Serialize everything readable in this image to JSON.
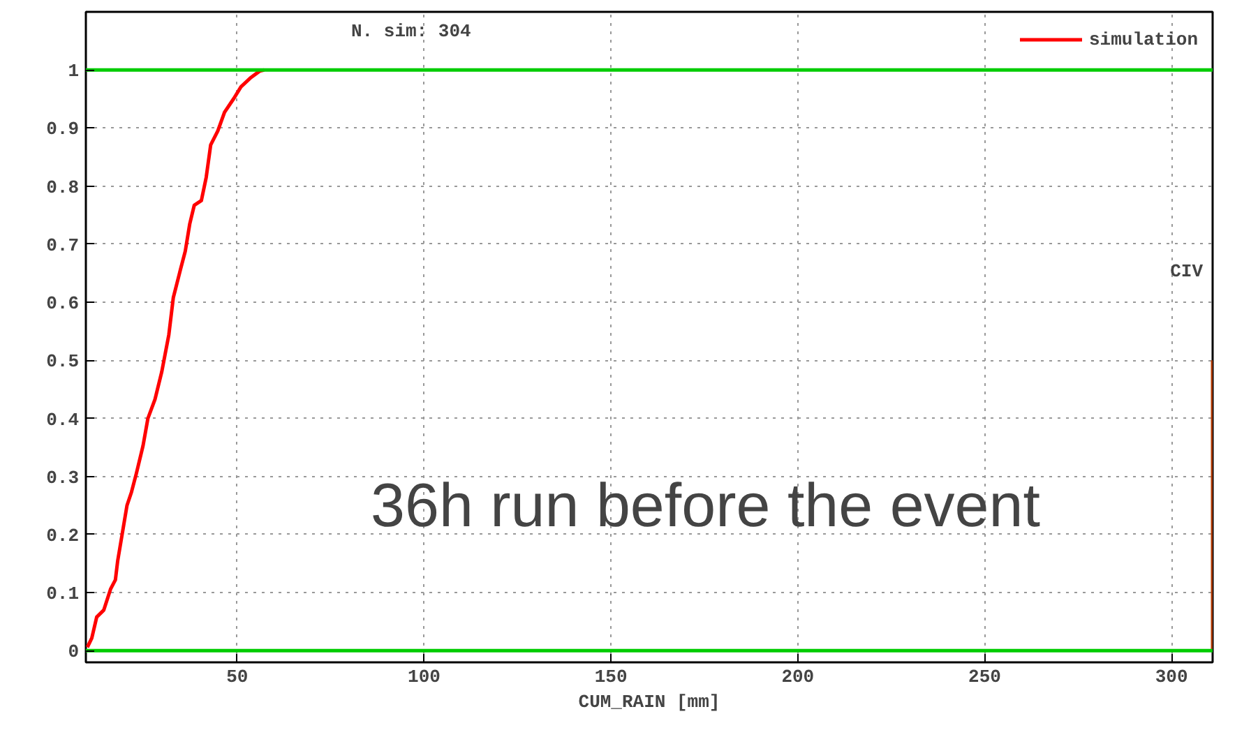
{
  "chart_data": {
    "type": "line",
    "title": "N. sim: 304",
    "xlabel": "CUM_RAIN [mm]",
    "xlim": [
      9.5,
      311
    ],
    "ylim": [
      -0.02,
      1.1
    ],
    "xticks": [
      50,
      100,
      150,
      200,
      250,
      300
    ],
    "yticks": [
      0,
      0.1,
      0.2,
      0.3,
      0.4,
      0.5,
      0.6,
      0.7,
      0.8,
      0.9,
      1
    ],
    "grid": true,
    "legend": "top right",
    "marker": "none",
    "line_style": "solid",
    "series": [
      {
        "name": "simulation",
        "color": "#ff0000",
        "x": [
          9.9,
          11.1,
          12.4,
          14.3,
          16.1,
          17.4,
          18.0,
          19.2,
          20.5,
          21.7,
          23.0,
          24.8,
          26.1,
          28.0,
          29.8,
          31.7,
          32.9,
          34.8,
          36.1,
          37.3,
          38.5,
          40.4,
          41.7,
          42.9,
          44.8,
          46.6,
          49.1,
          51.0,
          53.5,
          56.0,
          57.2
        ],
        "values": [
          0.006,
          0.022,
          0.058,
          0.07,
          0.106,
          0.122,
          0.154,
          0.2,
          0.25,
          0.273,
          0.305,
          0.353,
          0.4,
          0.433,
          0.48,
          0.544,
          0.608,
          0.656,
          0.688,
          0.735,
          0.767,
          0.775,
          0.815,
          0.871,
          0.895,
          0.927,
          0.951,
          0.971,
          0.986,
          0.998,
          1.0
        ]
      },
      {
        "color": "#b03a00",
        "x": [
          311,
          311
        ],
        "values": [
          0.5,
          0
        ]
      },
      {
        "color": "#00cc00",
        "x": [
          9.5,
          311
        ],
        "values": [
          0,
          0
        ]
      },
      {
        "color": "#00cc00",
        "x": [
          9.5,
          311
        ],
        "values": [
          1,
          1
        ]
      }
    ],
    "annotations": [
      "CIV",
      "36h run before the event"
    ]
  }
}
